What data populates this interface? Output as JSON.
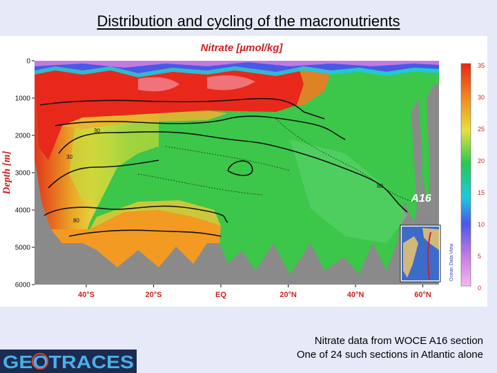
{
  "slide": {
    "title": "Distribution and cycling of the macronutrients",
    "caption_line1": "Nitrate data from WOCE A16 section",
    "caption_line2": "One of 24 such sections in Atlantic alone",
    "logo_text": "GEOTRACES"
  },
  "chart_data": {
    "type": "heatmap",
    "title": "Nitrate [µmol/kg]",
    "ylabel": "Depth [m]",
    "xlabel": "",
    "x_ticks": [
      "40°S",
      "20°S",
      "EQ",
      "20°N",
      "40°N",
      "60°N"
    ],
    "y_ticks": [
      0,
      1000,
      2000,
      3000,
      4000,
      5000,
      6000
    ],
    "ylim": [
      6000,
      0
    ],
    "colorbar": {
      "ticks": [
        35,
        30,
        25,
        20,
        15,
        10,
        5,
        0
      ],
      "range": [
        0,
        35
      ],
      "colors": [
        "#f4b8f0",
        "#c27ae0",
        "#4a58e6",
        "#1ec8e0",
        "#28c850",
        "#e8e040",
        "#f08c20",
        "#e82818"
      ]
    },
    "contour_labels": [
      "30",
      "30",
      "80",
      "80"
    ],
    "section_name": "A16",
    "inset_label": "Ocean Data View"
  }
}
